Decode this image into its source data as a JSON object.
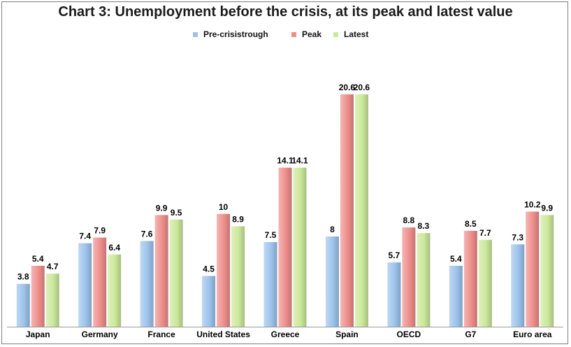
{
  "chart_data": {
    "type": "bar",
    "title": "Chart 3: Unemployment before the crisis, at its peak and latest value",
    "categories": [
      "Japan",
      "Germany",
      "France",
      "United States",
      "Greece",
      "Spain",
      "OECD",
      "G7",
      "Euro area"
    ],
    "series": [
      {
        "name": "Pre-crisistrough",
        "color": "#9dc3ec",
        "values": [
          3.8,
          7.4,
          7.6,
          4.5,
          7.5,
          8,
          5.7,
          5.4,
          7.3
        ],
        "labels": [
          "3.8",
          "7.4",
          "7.6",
          "4.5",
          "7.5",
          "8",
          "5.7",
          "5.4",
          "7.3"
        ]
      },
      {
        "name": "Peak",
        "color": "#ee8e8b",
        "values": [
          5.4,
          7.9,
          9.9,
          10,
          14.1,
          20.6,
          8.8,
          8.5,
          10.2
        ],
        "labels": [
          "5.4",
          "7.9",
          "9.9",
          "10",
          "14.1",
          "20.6",
          "8.8",
          "8.5",
          "10.2"
        ]
      },
      {
        "name": "Latest",
        "color": "#cbe89a",
        "values": [
          4.7,
          6.4,
          9.5,
          8.9,
          14.1,
          20.6,
          8.3,
          7.7,
          9.9
        ],
        "labels": [
          "4.7",
          "6.4",
          "9.5",
          "8.9",
          "14.1",
          "20.6",
          "8.3",
          "7.7",
          "9.9"
        ]
      }
    ],
    "xlabel": "",
    "ylabel": "",
    "ylim": [
      0,
      24
    ],
    "grid": false,
    "legend": "top-center"
  }
}
